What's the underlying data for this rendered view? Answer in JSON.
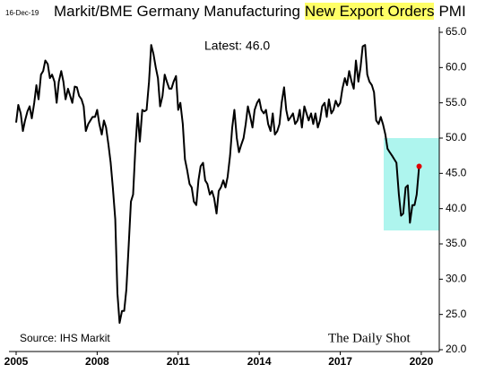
{
  "chart_data": {
    "type": "line",
    "date": "16-Dec-19",
    "title": [
      "Markit/BME Germany Manufacturing",
      "New Export Orders",
      "PMI"
    ],
    "annotation": "Latest:  46.0",
    "source": "Source: IHS Markit",
    "brand": "The Daily Shot",
    "color": "#000000",
    "highlight_color": "#aef5ee",
    "marker_color": "#e00000",
    "xlim": [
      2005,
      2020.5
    ],
    "xticks": [
      2005,
      2008,
      2011,
      2014,
      2017,
      2020
    ],
    "ylim": [
      20,
      65
    ],
    "yticks": [
      {
        "value": 20,
        "label": "20.0"
      },
      {
        "value": 25,
        "label": "25.0"
      },
      {
        "value": 30,
        "label": "30.0"
      },
      {
        "value": 35,
        "label": "35.0"
      },
      {
        "value": 40,
        "label": "40.0"
      },
      {
        "value": 45,
        "label": "45.0"
      },
      {
        "value": 50,
        "label": "50.0"
      },
      {
        "value": 55,
        "label": "55.0"
      },
      {
        "value": 60,
        "label": "60.0"
      },
      {
        "value": 65,
        "label": "65.0"
      }
    ],
    "grid": false,
    "x": [
      2005.0,
      2005.08,
      2005.17,
      2005.25,
      2005.33,
      2005.42,
      2005.5,
      2005.58,
      2005.67,
      2005.75,
      2005.83,
      2005.92,
      2006.0,
      2006.08,
      2006.17,
      2006.25,
      2006.33,
      2006.42,
      2006.5,
      2006.58,
      2006.67,
      2006.75,
      2006.83,
      2006.92,
      2007.0,
      2007.08,
      2007.17,
      2007.25,
      2007.33,
      2007.42,
      2007.5,
      2007.58,
      2007.67,
      2007.75,
      2007.83,
      2007.92,
      2008.0,
      2008.08,
      2008.17,
      2008.25,
      2008.33,
      2008.42,
      2008.5,
      2008.58,
      2008.67,
      2008.75,
      2008.83,
      2008.92,
      2009.0,
      2009.08,
      2009.17,
      2009.25,
      2009.33,
      2009.42,
      2009.5,
      2009.58,
      2009.67,
      2009.75,
      2009.83,
      2009.92,
      2010.0,
      2010.08,
      2010.17,
      2010.25,
      2010.33,
      2010.42,
      2010.5,
      2010.58,
      2010.67,
      2010.75,
      2010.83,
      2010.92,
      2011.0,
      2011.08,
      2011.17,
      2011.25,
      2011.33,
      2011.42,
      2011.5,
      2011.58,
      2011.67,
      2011.75,
      2011.83,
      2011.92,
      2012.0,
      2012.08,
      2012.17,
      2012.25,
      2012.33,
      2012.42,
      2012.5,
      2012.58,
      2012.67,
      2012.75,
      2012.83,
      2012.92,
      2013.0,
      2013.08,
      2013.17,
      2013.25,
      2013.33,
      2013.42,
      2013.5,
      2013.58,
      2013.67,
      2013.75,
      2013.83,
      2013.92,
      2014.0,
      2014.08,
      2014.17,
      2014.25,
      2014.33,
      2014.42,
      2014.5,
      2014.58,
      2014.67,
      2014.75,
      2014.83,
      2014.92,
      2015.0,
      2015.08,
      2015.17,
      2015.25,
      2015.33,
      2015.42,
      2015.5,
      2015.58,
      2015.67,
      2015.75,
      2015.83,
      2015.92,
      2016.0,
      2016.08,
      2016.17,
      2016.25,
      2016.33,
      2016.42,
      2016.5,
      2016.58,
      2016.67,
      2016.75,
      2016.83,
      2016.92,
      2017.0,
      2017.08,
      2017.17,
      2017.25,
      2017.33,
      2017.42,
      2017.5,
      2017.58,
      2017.67,
      2017.75,
      2017.83,
      2017.92,
      2018.0,
      2018.08,
      2018.17,
      2018.25,
      2018.33,
      2018.42,
      2018.5,
      2018.58,
      2018.67,
      2018.75,
      2018.83,
      2018.92,
      2019.0,
      2019.08,
      2019.17,
      2019.25,
      2019.33,
      2019.42,
      2019.5,
      2019.58,
      2019.67,
      2019.75,
      2019.83,
      2019.92
    ],
    "series": [
      {
        "name": "New Export Orders PMI",
        "color": "#000000",
        "values": [
          52.2,
          54.7,
          53.5,
          51.0,
          52.5,
          53.8,
          54.5,
          52.8,
          55.0,
          57.5,
          55.5,
          59.0,
          59.5,
          61.0,
          60.5,
          58.5,
          59.0,
          58.0,
          55.0,
          58.0,
          59.5,
          58.0,
          55.5,
          57.0,
          56.0,
          55.0,
          57.3,
          57.2,
          56.0,
          55.5,
          54.5,
          51.0,
          52.0,
          52.5,
          53.0,
          53.0,
          54.0,
          52.0,
          50.5,
          52.5,
          51.5,
          49.0,
          46.5,
          43.0,
          38.5,
          28.0,
          23.8,
          25.5,
          25.5,
          28.5,
          35.0,
          41.0,
          42.0,
          49.0,
          53.5,
          49.5,
          54.0,
          53.8,
          54.0,
          58.0,
          63.2,
          62.0,
          60.0,
          58.5,
          54.5,
          56.0,
          59.0,
          58.0,
          57.0,
          57.0,
          58.0,
          58.8,
          54.0,
          55.0,
          52.0,
          47.0,
          45.5,
          43.5,
          43.0,
          41.0,
          40.5,
          44.0,
          46.0,
          46.5,
          44.0,
          43.5,
          42.0,
          42.5,
          41.5,
          39.3,
          42.5,
          43.0,
          44.0,
          43.0,
          44.5,
          47.5,
          51.5,
          54.0,
          50.0,
          48.0,
          49.0,
          50.0,
          52.0,
          54.5,
          53.0,
          51.5,
          54.0,
          55.0,
          55.5,
          54.0,
          53.5,
          54.0,
          52.0,
          51.0,
          53.5,
          50.5,
          51.0,
          52.0,
          55.0,
          57.2,
          54.0,
          52.5,
          53.0,
          53.5,
          52.0,
          52.5,
          54.0,
          51.5,
          54.5,
          53.5,
          52.5,
          53.5,
          52.0,
          53.5,
          51.5,
          52.5,
          54.5,
          55.0,
          53.0,
          55.5,
          53.5,
          54.0,
          55.3,
          54.5,
          55.0,
          57.0,
          58.5,
          57.5,
          59.5,
          58.0,
          57.0,
          61.0,
          58.0,
          60.0,
          63.0,
          63.2,
          59.0,
          58.0,
          57.5,
          56.5,
          52.5,
          52.0,
          53.0,
          52.0,
          50.5,
          48.5,
          48.0,
          47.5,
          47.0,
          46.5,
          42.0,
          39.0,
          39.3,
          43.0,
          43.3,
          38.0,
          40.5,
          40.5,
          42.0,
          46.0
        ]
      }
    ]
  }
}
